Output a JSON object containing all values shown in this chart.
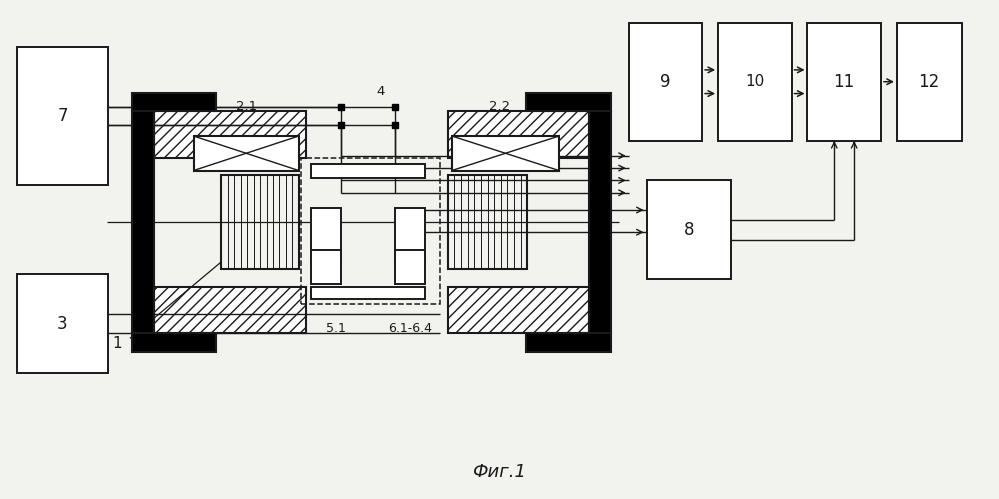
{
  "bg_color": "#f2f2ee",
  "line_color": "#1a1a1a",
  "title": "Фиг.1",
  "title_fontsize": 13
}
